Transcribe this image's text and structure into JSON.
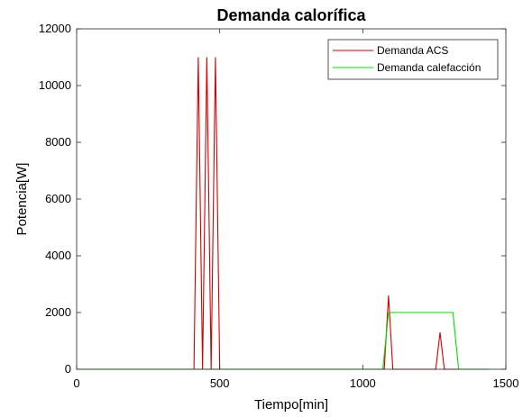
{
  "chart_data": {
    "type": "line",
    "title": "Demanda calorífica",
    "xlabel": "Tiempo[min]",
    "ylabel": "Potencia[W]",
    "xlim": [
      0,
      1500
    ],
    "ylim": [
      0,
      12000
    ],
    "xticks": [
      0,
      500,
      1000,
      1500
    ],
    "yticks": [
      0,
      2000,
      4000,
      6000,
      8000,
      10000,
      12000
    ],
    "grid": false,
    "legend_position": "top-right",
    "series": [
      {
        "name": "Demanda ACS",
        "color": "#d40000",
        "x": [
          0,
          410,
          425,
          440,
          455,
          470,
          485,
          500,
          505,
          1075,
          1090,
          1105,
          1255,
          1270,
          1285,
          1440
        ],
        "y": [
          0,
          0,
          11000,
          0,
          11000,
          0,
          11000,
          0,
          0,
          0,
          2600,
          0,
          0,
          1300,
          0,
          0
        ]
      },
      {
        "name": "Demanda calefacción",
        "color": "#00dd00",
        "x": [
          0,
          1070,
          1090,
          1315,
          1335,
          1440
        ],
        "y": [
          0,
          0,
          2000,
          2000,
          0,
          0
        ]
      }
    ]
  }
}
